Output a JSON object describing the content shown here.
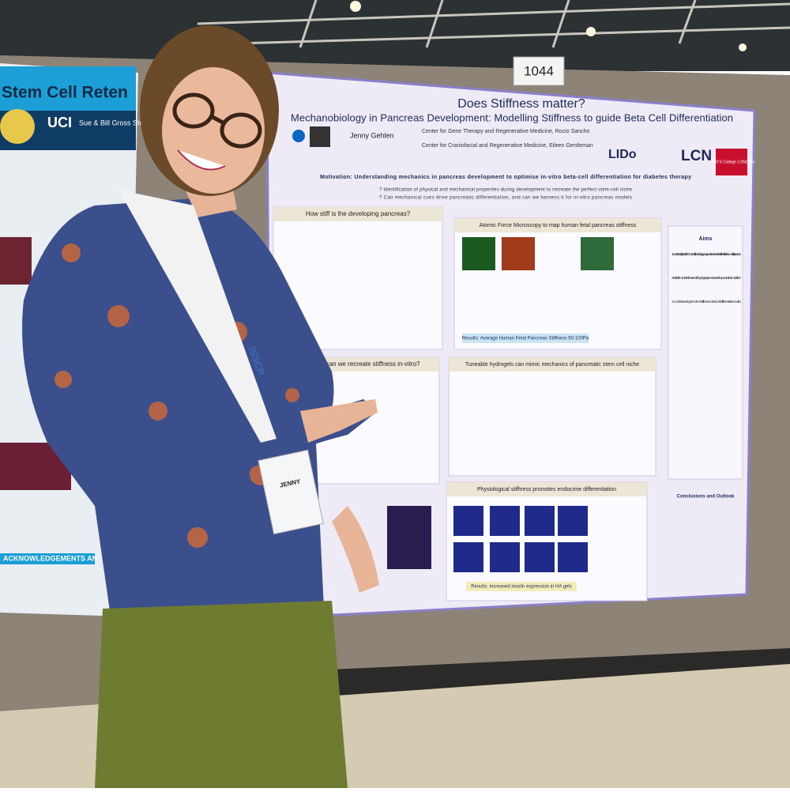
{
  "booth_number": "1044",
  "main_poster": {
    "title": "Does Stiffness matter?",
    "subtitle": "Mechanobiology in Pancreas Development: Modelling Stiffness to guide Beta Cell Differentiation",
    "author": "Jenny Gehlen",
    "affiliations": [
      "Center for Gene Therapy and Regenerative Medicine, Rocio Sancho",
      "Center for Craniofacial and Regenerative Medicine, Eileen Gentleman"
    ],
    "logos": [
      "LIDo",
      "LCN",
      "KING'S College LONDON"
    ],
    "motivation": "Motivation: Understanding mechanics in pancreas development to optimise in-vitro beta-cell differentiation for diabetes therapy",
    "questions": [
      "? Identification of physical and mechanical properties during development to recreate the perfect stem-cell niche",
      "? Can mechanical cues drive pancreatic differentiation, and can we harness it for in-vitro pancreas models"
    ],
    "sections": [
      "How stiff is the developing pancreas?",
      "Atomic Force Microscopy to map human fetal pancreas stiffness",
      "How can we recreate stiffness in-vitro?",
      "Tuneable hydrogels can mimic mechanics of pancreatic stem cell niche",
      "Physiological stiffness promotes endocrine differentiation"
    ],
    "results": [
      "Results: Average Human Fetal Pancreas Stiffness 50-100Pa",
      "Results: increased insulin expression in HA gels"
    ],
    "aims_title": "Aims",
    "aims": [
      "1. Understanding the role of ECM and stiffness during organogenesis and endocrine differentiation in human fetal pancreas",
      "2. Establishment of a stiffness-tunable hydrogel system to recreate the pancreatic stem cell niche",
      "3. Understanding the role of stiffness in beta cell differentiation in-vitro"
    ],
    "conclusions_title": "Conclusions and Outlook"
  },
  "left_poster": {
    "title": "Stem Cell Reten",
    "sponsor_logo": "UCI",
    "sponsor": "Sue & Bill Gross Stem Cell Rese",
    "acknowledgements": "ACKNOWLEDGEMENTS AN"
  },
  "badge": {
    "name": "JENNY"
  },
  "lanyard": "ISSCR"
}
